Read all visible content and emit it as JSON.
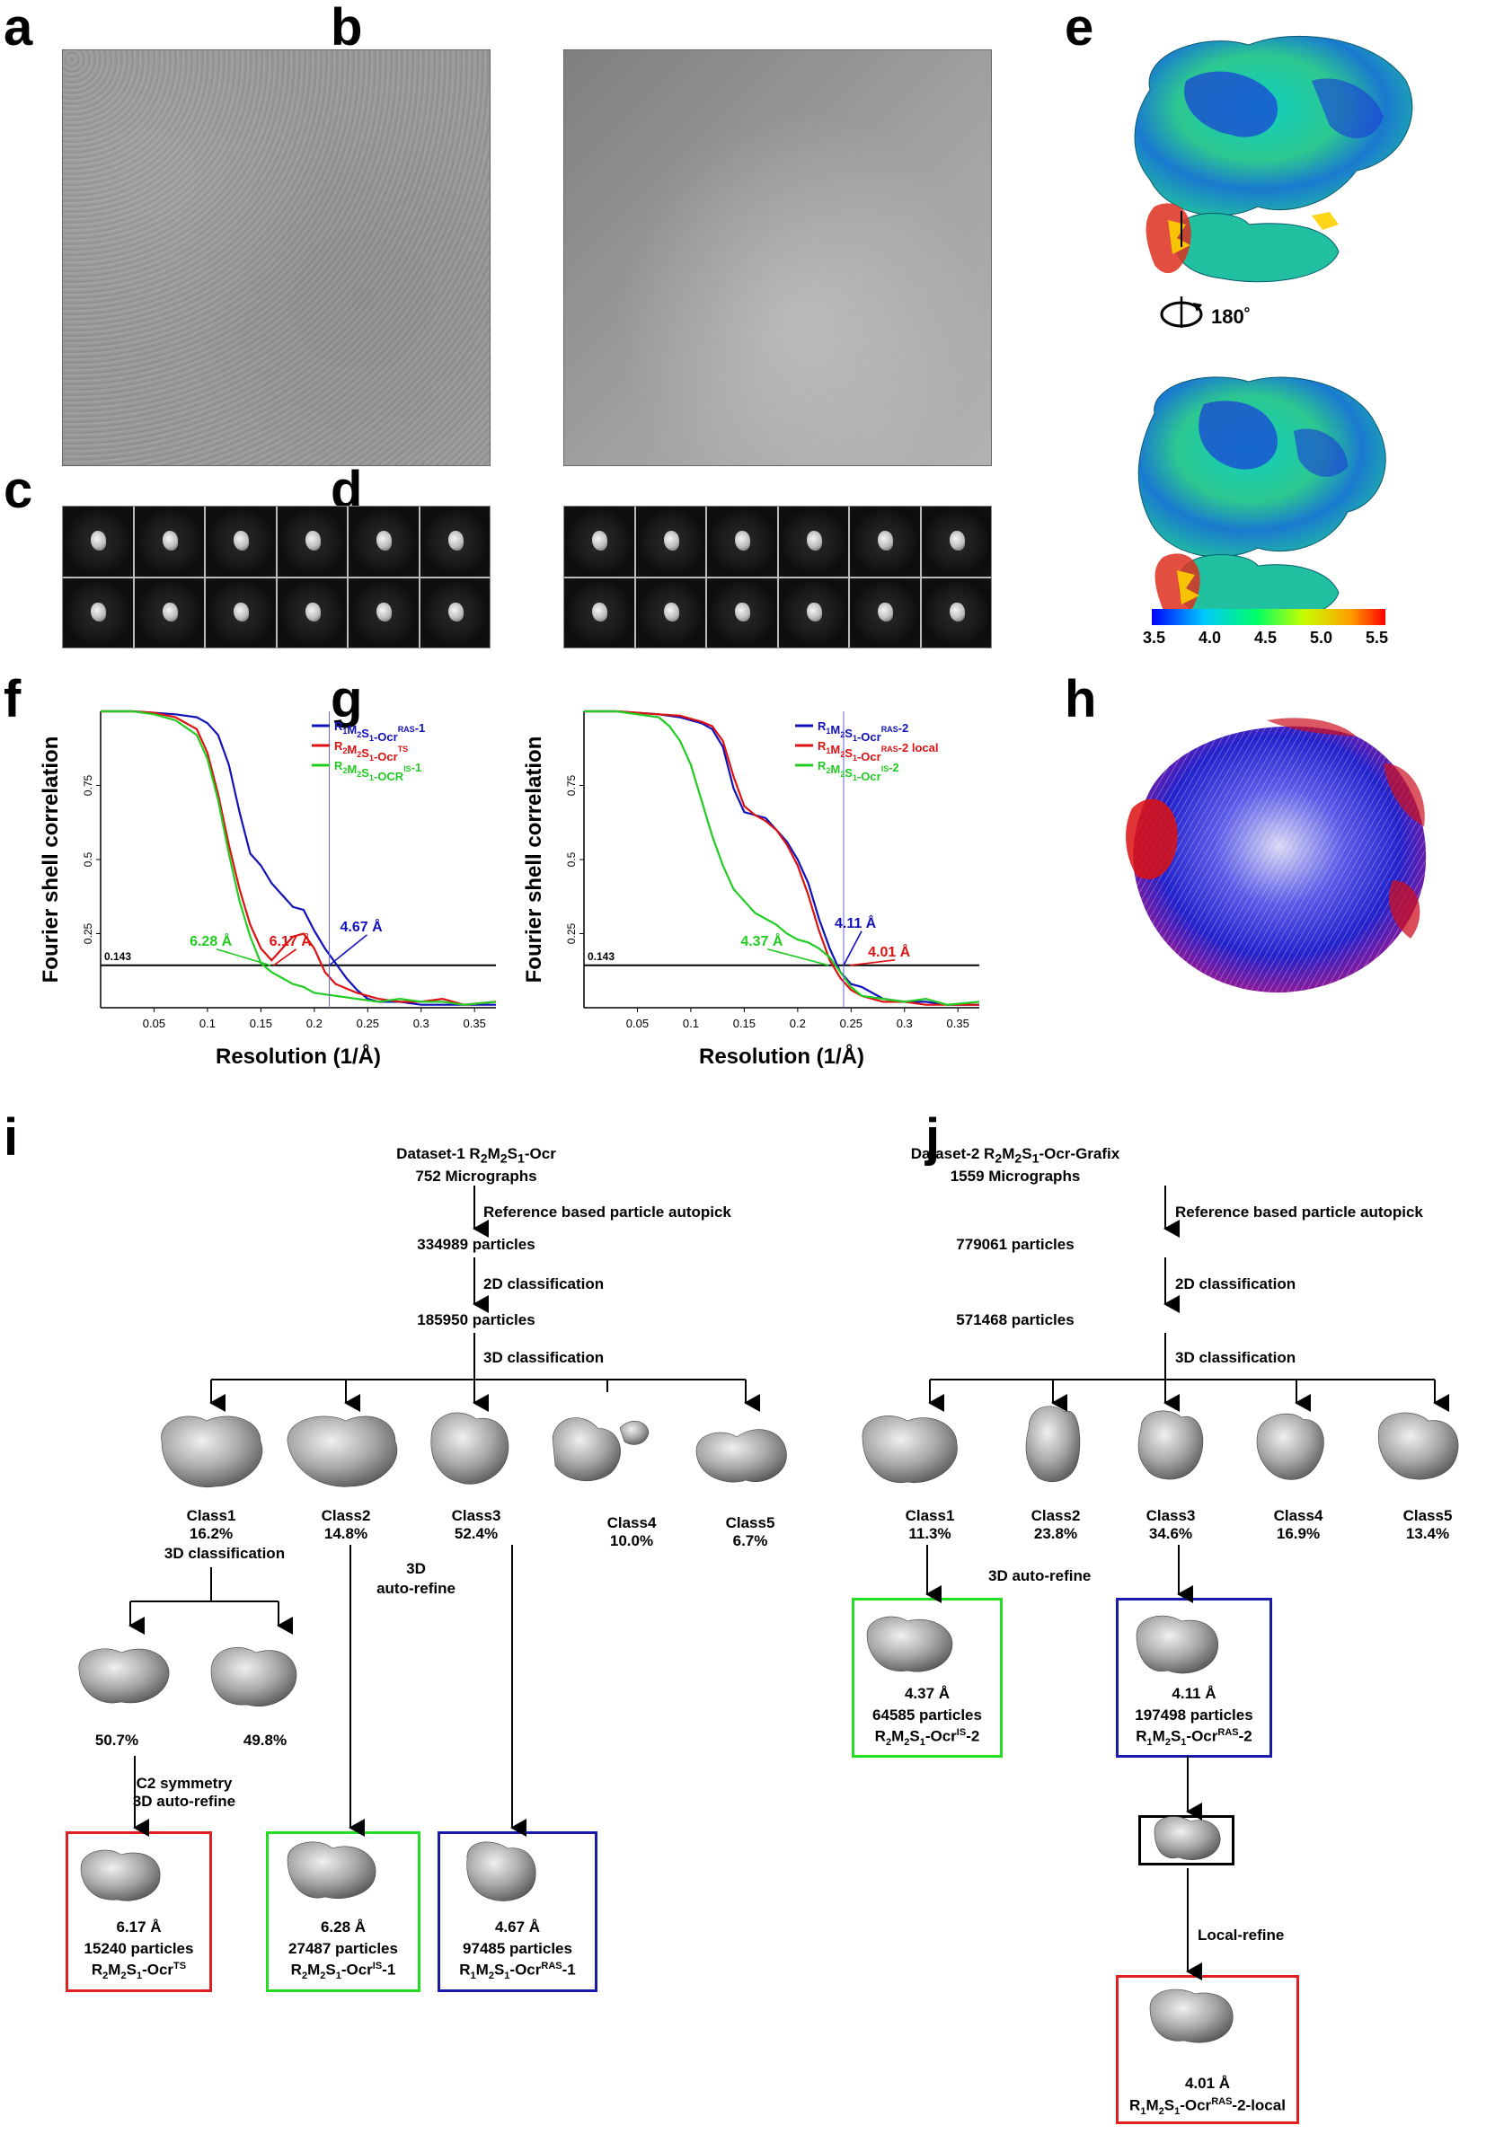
{
  "panels": {
    "a": "a",
    "b": "b",
    "c": "c",
    "d": "d",
    "e": "e",
    "f": "f",
    "g": "g",
    "h": "h",
    "i": "i",
    "j": "j"
  },
  "e": {
    "rotation": "180˚",
    "colorbar": {
      "ticks": [
        "3.5",
        "4.0",
        "4.5",
        "5.0",
        "5.5"
      ],
      "colors": [
        "#0000ff",
        "#00c8ff",
        "#00ff66",
        "#c8ff00",
        "#ffa000",
        "#ff0000"
      ]
    }
  },
  "chart_data": [
    {
      "type": "line",
      "panel": "f",
      "ylabel": "Fourier shell correlation",
      "xlabel": "Resolution (1/Å)",
      "xlim": [
        0,
        0.37
      ],
      "ylim": [
        0,
        1
      ],
      "xticks": [
        "0.05",
        "0.1",
        "0.15",
        "0.2",
        "0.25",
        "0.3",
        "0.35"
      ],
      "yticks": [
        "0.25",
        "0.5",
        "0.75"
      ],
      "threshold": {
        "value": 0.143,
        "label": "0.143"
      },
      "annotations": [
        {
          "text": "6.28 Å",
          "color": "#22cc22",
          "x": 0.159,
          "y": 0.143
        },
        {
          "text": "6.17 Å",
          "color": "#dd1111",
          "x": 0.162,
          "y": 0.143
        },
        {
          "text": "4.67 Å",
          "color": "#1111bb",
          "x": 0.214,
          "y": 0.143
        }
      ],
      "legend_loc": "top-right",
      "series": [
        {
          "name": "R1M2S1-OcrRAS-1",
          "sub": [
            "R",
            "1",
            "M",
            "2",
            "S",
            "1",
            "-Ocr",
            "RAS",
            "-1"
          ],
          "color": "#1111bb",
          "x": [
            0,
            0.03,
            0.05,
            0.07,
            0.09,
            0.1,
            0.11,
            0.12,
            0.13,
            0.14,
            0.15,
            0.16,
            0.17,
            0.18,
            0.19,
            0.2,
            0.21,
            0.22,
            0.23,
            0.24,
            0.25,
            0.26,
            0.28,
            0.3,
            0.33,
            0.36,
            0.37
          ],
          "y": [
            1,
            1,
            0.995,
            0.99,
            0.98,
            0.96,
            0.92,
            0.82,
            0.66,
            0.52,
            0.48,
            0.42,
            0.38,
            0.34,
            0.33,
            0.26,
            0.2,
            0.15,
            0.1,
            0.06,
            0.03,
            0.02,
            0.02,
            0.01,
            0.01,
            0.01,
            0.01
          ]
        },
        {
          "name": "R2M2S1-OcrTS",
          "sub": [
            "R",
            "2",
            "M",
            "2",
            "S",
            "1",
            "-Ocr",
            "TS",
            ""
          ],
          "color": "#dd1111",
          "x": [
            0,
            0.03,
            0.05,
            0.07,
            0.09,
            0.1,
            0.11,
            0.12,
            0.13,
            0.14,
            0.15,
            0.16,
            0.17,
            0.18,
            0.19,
            0.2,
            0.21,
            0.22,
            0.24,
            0.26,
            0.28,
            0.3,
            0.32,
            0.34,
            0.37
          ],
          "y": [
            1,
            1,
            0.995,
            0.98,
            0.94,
            0.86,
            0.72,
            0.55,
            0.4,
            0.28,
            0.2,
            0.16,
            0.2,
            0.24,
            0.25,
            0.2,
            0.12,
            0.08,
            0.05,
            0.03,
            0.02,
            0.02,
            0.03,
            0.01,
            0.02
          ]
        },
        {
          "name": "R2M2S1-OCRIS-1",
          "sub": [
            "R",
            "2",
            "M",
            "2",
            "S",
            "1",
            "-OCR",
            "IS",
            "-1"
          ],
          "color": "#22cc22",
          "x": [
            0,
            0.03,
            0.05,
            0.07,
            0.09,
            0.1,
            0.11,
            0.12,
            0.13,
            0.14,
            0.15,
            0.16,
            0.17,
            0.18,
            0.19,
            0.2,
            0.22,
            0.24,
            0.26,
            0.28,
            0.3,
            0.32,
            0.34,
            0.37
          ],
          "y": [
            1,
            1,
            0.99,
            0.97,
            0.92,
            0.84,
            0.7,
            0.52,
            0.36,
            0.24,
            0.15,
            0.12,
            0.1,
            0.08,
            0.07,
            0.05,
            0.04,
            0.03,
            0.02,
            0.03,
            0.02,
            0.02,
            0.01,
            0.02
          ]
        }
      ]
    },
    {
      "type": "line",
      "panel": "g",
      "ylabel": "Fourier shell correlation",
      "xlabel": "Resolution (1/Å)",
      "xlim": [
        0,
        0.37
      ],
      "ylim": [
        0,
        1
      ],
      "xticks": [
        "0.05",
        "0.1",
        "0.15",
        "0.2",
        "0.25",
        "0.3",
        "0.35"
      ],
      "yticks": [
        "0.25",
        "0.5",
        "0.75"
      ],
      "threshold": {
        "value": 0.143,
        "label": "0.143"
      },
      "annotations": [
        {
          "text": "4.37 Å",
          "color": "#22cc22",
          "x": 0.229,
          "y": 0.143
        },
        {
          "text": "4.11 Å",
          "color": "#1111bb",
          "x": 0.243,
          "y": 0.143
        },
        {
          "text": "4.01 Å",
          "color": "#dd1111",
          "x": 0.249,
          "y": 0.143
        }
      ],
      "legend_loc": "top-right",
      "series": [
        {
          "name": "R1M2S1-OcrRAS-2",
          "sub": [
            "R",
            "1",
            "M",
            "2",
            "S",
            "1",
            "-Ocr",
            "RAS",
            "-2"
          ],
          "color": "#1111bb",
          "x": [
            0,
            0.03,
            0.05,
            0.07,
            0.09,
            0.1,
            0.11,
            0.12,
            0.13,
            0.14,
            0.15,
            0.16,
            0.17,
            0.18,
            0.19,
            0.2,
            0.21,
            0.22,
            0.23,
            0.24,
            0.25,
            0.26,
            0.27,
            0.28,
            0.3,
            0.32,
            0.34,
            0.36,
            0.37
          ],
          "y": [
            1,
            1,
            0.995,
            0.99,
            0.98,
            0.97,
            0.96,
            0.94,
            0.88,
            0.74,
            0.66,
            0.65,
            0.64,
            0.6,
            0.56,
            0.5,
            0.42,
            0.3,
            0.2,
            0.12,
            0.08,
            0.07,
            0.05,
            0.03,
            0.02,
            0.02,
            0.01,
            0.01,
            0.01
          ]
        },
        {
          "name": "R1M2S1-OcrRAS-2 local",
          "sub": [
            "R",
            "1",
            "M",
            "2",
            "S",
            "1",
            "-Ocr",
            "RAS",
            "-2 local"
          ],
          "color": "#dd1111",
          "x": [
            0,
            0.03,
            0.05,
            0.07,
            0.09,
            0.1,
            0.11,
            0.12,
            0.13,
            0.14,
            0.15,
            0.16,
            0.17,
            0.18,
            0.19,
            0.2,
            0.21,
            0.22,
            0.23,
            0.24,
            0.25,
            0.26,
            0.28,
            0.3,
            0.32,
            0.34,
            0.37
          ],
          "y": [
            1,
            1,
            0.995,
            0.99,
            0.985,
            0.975,
            0.965,
            0.95,
            0.9,
            0.78,
            0.68,
            0.65,
            0.63,
            0.6,
            0.55,
            0.48,
            0.38,
            0.26,
            0.16,
            0.1,
            0.06,
            0.04,
            0.02,
            0.02,
            0.01,
            0.01,
            0.01
          ]
        },
        {
          "name": "R2M2S1-OcrIS-2",
          "sub": [
            "R",
            "2",
            "M",
            "2",
            "S",
            "1",
            "-Ocr",
            "IS",
            "-2"
          ],
          "color": "#22cc22",
          "x": [
            0,
            0.03,
            0.05,
            0.07,
            0.08,
            0.09,
            0.1,
            0.11,
            0.12,
            0.13,
            0.14,
            0.15,
            0.16,
            0.17,
            0.18,
            0.19,
            0.2,
            0.21,
            0.22,
            0.23,
            0.24,
            0.25,
            0.26,
            0.28,
            0.3,
            0.32,
            0.34,
            0.37
          ],
          "y": [
            1,
            1,
            0.99,
            0.98,
            0.95,
            0.9,
            0.82,
            0.7,
            0.58,
            0.48,
            0.4,
            0.36,
            0.32,
            0.3,
            0.28,
            0.25,
            0.23,
            0.22,
            0.2,
            0.17,
            0.12,
            0.07,
            0.04,
            0.03,
            0.02,
            0.03,
            0.01,
            0.02
          ]
        }
      ]
    }
  ],
  "i": {
    "header_line1": "Dataset-1 R2M2S1-Ocr",
    "header_parts": [
      "Dataset-1 R",
      "2",
      "M",
      "2",
      "S",
      "1",
      "-Ocr"
    ],
    "micrographs": "752 Micrographs",
    "step1": "Reference based particle autopick",
    "n1": "334989 particles",
    "step2": "2D classification",
    "n2": "185950 particles",
    "step3": "3D classification",
    "classes": [
      {
        "name": "Class1",
        "pct": "16.2%"
      },
      {
        "name": "Class2",
        "pct": "14.8%"
      },
      {
        "name": "Class3",
        "pct": "52.4%"
      },
      {
        "name": "Class4",
        "pct": "10.0%"
      },
      {
        "name": "Class5",
        "pct": "6.7%"
      }
    ],
    "sub_step": "3D classification",
    "auto_refine_line1": "3D",
    "auto_refine_line2": "auto-refine",
    "sub_classes": [
      "50.7%",
      "49.8%"
    ],
    "c2_line1": "C2 symmetry",
    "c2_line2": "3D auto-refine",
    "results": [
      {
        "res": "6.17 Å",
        "particles": "15240 particles",
        "name": [
          "R",
          "2",
          "M",
          "2",
          "S",
          "1",
          "-Ocr",
          "TS",
          ""
        ],
        "color": "#e02020"
      },
      {
        "res": "6.28 Å",
        "particles": "27487 particles",
        "name": [
          "R",
          "2",
          "M",
          "2",
          "S",
          "1",
          "-Ocr",
          "IS",
          "-1"
        ],
        "color": "#22dd22"
      },
      {
        "res": "4.67 Å",
        "particles": "97485 particles",
        "name": [
          "R",
          "1",
          "M",
          "2",
          "S",
          "1",
          "-Ocr",
          "RAS",
          "-1"
        ],
        "color": "#1a1aaa"
      }
    ]
  },
  "j": {
    "header_parts": [
      "Dataset-2 R",
      "2",
      "M",
      "2",
      "S",
      "1",
      "-Ocr-Grafix"
    ],
    "micrographs": "1559 Micrographs",
    "step1": "Reference based particle autopick",
    "n1": "779061 particles",
    "step2": "2D classification",
    "n2": "571468 particles",
    "step3": "3D classification",
    "classes": [
      {
        "name": "Class1",
        "pct": "11.3%"
      },
      {
        "name": "Class2",
        "pct": "23.8%"
      },
      {
        "name": "Class3",
        "pct": "34.6%"
      },
      {
        "name": "Class4",
        "pct": "16.9%"
      },
      {
        "name": "Class5",
        "pct": "13.4%"
      }
    ],
    "auto_refine": "3D auto-refine",
    "local_refine": "Local-refine",
    "results": [
      {
        "res": "4.37 Å",
        "particles": "64585 particles",
        "name": [
          "R",
          "2",
          "M",
          "2",
          "S",
          "1",
          "-Ocr",
          "IS",
          "-2"
        ],
        "color": "#22dd22"
      },
      {
        "res": "4.11 Å",
        "particles": "197498 particles",
        "name": [
          "R",
          "1",
          "M",
          "2",
          "S",
          "1",
          "-Ocr",
          "RAS",
          "-2"
        ],
        "color": "#1a1aaa"
      },
      {
        "res": "4.01 Å",
        "particles": "",
        "name": [
          "R",
          "1",
          "M",
          "2",
          "S",
          "1",
          "-Ocr",
          "RAS",
          "-2-local"
        ],
        "color": "#e02020"
      }
    ]
  }
}
